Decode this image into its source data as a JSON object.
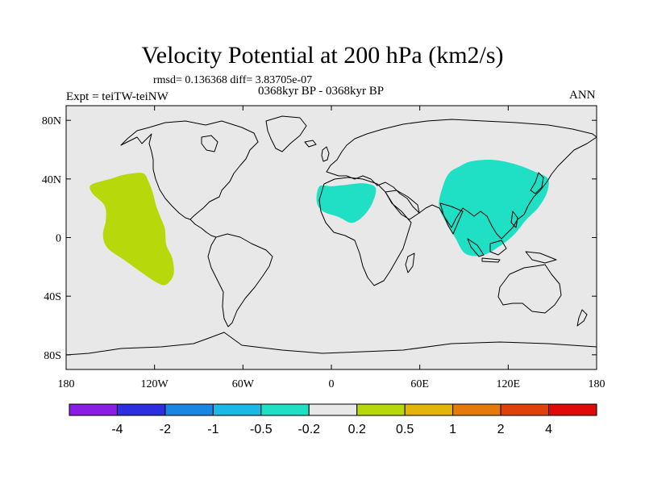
{
  "title": "Velocity Potential at 200 hPa (km2/s)",
  "stats_line": "rmsd= 0.136368 diff= 3.83705e-07",
  "experiment": "Expt = teiTW-teiNW",
  "period": "0368kyr BP - 0368kyr BP",
  "season": "ANN",
  "axes": {
    "lon_ticks": [
      {
        "value": -180,
        "label": "180"
      },
      {
        "value": -120,
        "label": "120W"
      },
      {
        "value": -60,
        "label": "60W"
      },
      {
        "value": 0,
        "label": "0"
      },
      {
        "value": 60,
        "label": "60E"
      },
      {
        "value": 120,
        "label": "120E"
      },
      {
        "value": 180,
        "label": "180"
      }
    ],
    "lat_ticks": [
      {
        "value": 80,
        "label": "80N"
      },
      {
        "value": 40,
        "label": "40N"
      },
      {
        "value": 0,
        "label": "0"
      },
      {
        "value": -40,
        "label": "40S"
      },
      {
        "value": -80,
        "label": "80S"
      }
    ],
    "lon_range": [
      -180,
      180
    ],
    "lat_range": [
      -90,
      90
    ]
  },
  "colorbar": {
    "colors": [
      "#8a1ce6",
      "#2d2ee0",
      "#1a86e3",
      "#1cb8e6",
      "#1fe0c5",
      "#e8e8e8",
      "#b7d80a",
      "#e3b50a",
      "#e37a0a",
      "#e0400a",
      "#e00a0a"
    ],
    "labels": [
      "-4",
      "-2",
      "-1",
      "-0.5",
      "-0.2",
      "0.2",
      "0.5",
      "1",
      "2",
      "4"
    ]
  },
  "anomaly_regions": [
    {
      "name": "eastern-pacific-positive",
      "sign": "positive",
      "color": "#b7d80a",
      "lonlat": [
        [
          -163,
          36
        ],
        [
          -150,
          40
        ],
        [
          -140,
          43
        ],
        [
          -128,
          44
        ],
        [
          -124,
          38
        ],
        [
          -121,
          30
        ],
        [
          -119,
          22
        ],
        [
          -116,
          14
        ],
        [
          -113,
          6
        ],
        [
          -112,
          -5
        ],
        [
          -108,
          -14
        ],
        [
          -107,
          -25
        ],
        [
          -112,
          -32
        ],
        [
          -118,
          -31
        ],
        [
          -130,
          -23
        ],
        [
          -141,
          -15
        ],
        [
          -152,
          -7
        ],
        [
          -155,
          2
        ],
        [
          -153,
          12
        ],
        [
          -154,
          22
        ],
        [
          -162,
          30
        ]
      ]
    },
    {
      "name": "north-africa-negative",
      "sign": "negative",
      "color": "#1fe0c5",
      "lonlat": [
        [
          -8,
          35
        ],
        [
          0,
          35
        ],
        [
          10,
          36
        ],
        [
          22,
          37
        ],
        [
          30,
          34
        ],
        [
          28,
          24
        ],
        [
          22,
          15
        ],
        [
          14,
          10
        ],
        [
          5,
          14
        ],
        [
          -6,
          18
        ],
        [
          -10,
          25
        ]
      ]
    },
    {
      "name": "asia-pacific-negative",
      "sign": "negative",
      "color": "#1fe0c5",
      "lonlat": [
        [
          86,
          48
        ],
        [
          95,
          52
        ],
        [
          110,
          53
        ],
        [
          125,
          50
        ],
        [
          138,
          45
        ],
        [
          147,
          40
        ],
        [
          146,
          30
        ],
        [
          140,
          20
        ],
        [
          132,
          12
        ],
        [
          124,
          2
        ],
        [
          114,
          -6
        ],
        [
          103,
          -12
        ],
        [
          91,
          -11
        ],
        [
          84,
          0
        ],
        [
          78,
          10
        ],
        [
          73,
          22
        ],
        [
          76,
          36
        ],
        [
          80,
          44
        ]
      ]
    }
  ]
}
